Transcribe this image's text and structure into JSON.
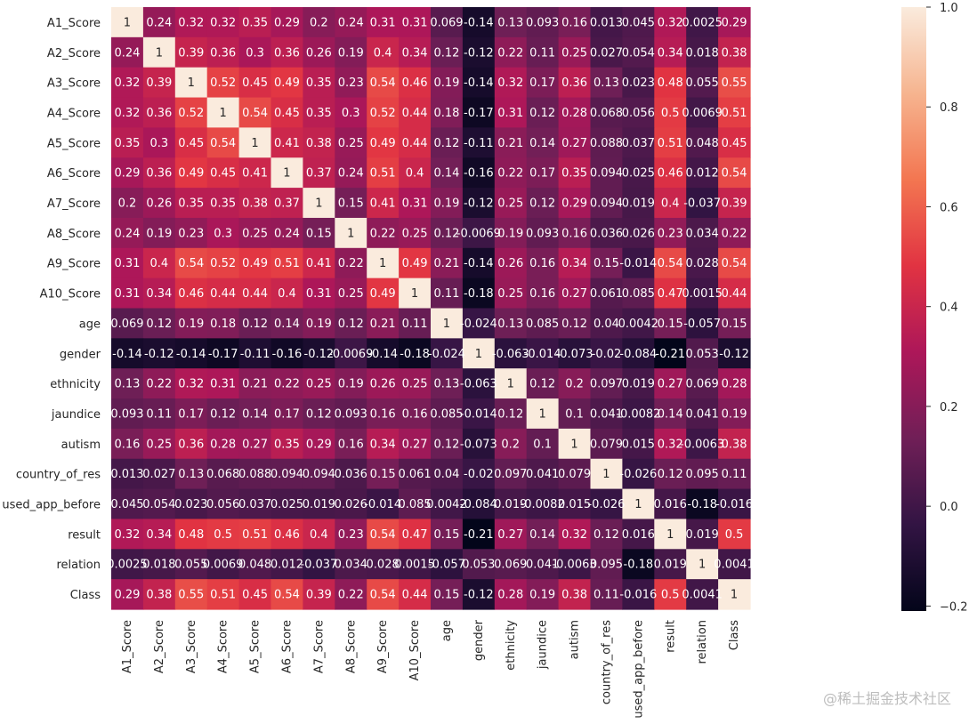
{
  "chart_data": {
    "type": "heatmap",
    "title": "",
    "labels": [
      "A1_Score",
      "A2_Score",
      "A3_Score",
      "A4_Score",
      "A5_Score",
      "A6_Score",
      "A7_Score",
      "A8_Score",
      "A9_Score",
      "A10_Score",
      "age",
      "gender",
      "ethnicity",
      "jaundice",
      "autism",
      "country_of_res",
      "used_app_before",
      "result",
      "relation",
      "Class"
    ],
    "values": [
      [
        "1",
        "0.24",
        "0.32",
        "0.32",
        "0.35",
        "0.29",
        "0.2",
        "0.24",
        "0.31",
        "0.31",
        "0.069",
        "-0.14",
        "0.13",
        "0.093",
        "0.16",
        "0.013",
        "0.045",
        "0.32",
        "0.0025",
        "0.29"
      ],
      [
        "0.24",
        "1",
        "0.39",
        "0.36",
        "0.3",
        "0.36",
        "0.26",
        "0.19",
        "0.4",
        "0.34",
        "0.12",
        "-0.12",
        "0.22",
        "0.11",
        "0.25",
        "0.027",
        "0.054",
        "0.34",
        "0.018",
        "0.38"
      ],
      [
        "0.32",
        "0.39",
        "1",
        "0.52",
        "0.45",
        "0.49",
        "0.35",
        "0.23",
        "0.54",
        "0.46",
        "0.19",
        "-0.14",
        "0.32",
        "0.17",
        "0.36",
        "0.13",
        "0.023",
        "0.48",
        "0.055",
        "0.55"
      ],
      [
        "0.32",
        "0.36",
        "0.52",
        "1",
        "0.54",
        "0.45",
        "0.35",
        "0.3",
        "0.52",
        "0.44",
        "0.18",
        "-0.17",
        "0.31",
        "0.12",
        "0.28",
        "0.068",
        "0.056",
        "0.5",
        "0.0069",
        "0.51"
      ],
      [
        "0.35",
        "0.3",
        "0.45",
        "0.54",
        "1",
        "0.41",
        "0.38",
        "0.25",
        "0.49",
        "0.44",
        "0.12",
        "-0.11",
        "0.21",
        "0.14",
        "0.27",
        "0.088",
        "0.037",
        "0.51",
        "0.048",
        "0.45"
      ],
      [
        "0.29",
        "0.36",
        "0.49",
        "0.45",
        "0.41",
        "1",
        "0.37",
        "0.24",
        "0.51",
        "0.4",
        "0.14",
        "-0.16",
        "0.22",
        "0.17",
        "0.35",
        "0.094",
        "0.025",
        "0.46",
        "0.012",
        "0.54"
      ],
      [
        "0.2",
        "0.26",
        "0.35",
        "0.35",
        "0.38",
        "0.37",
        "1",
        "0.15",
        "0.41",
        "0.31",
        "0.19",
        "-0.12",
        "0.25",
        "0.12",
        "0.29",
        "0.094",
        "0.019",
        "0.4",
        "-0.037",
        "0.39"
      ],
      [
        "0.24",
        "0.19",
        "0.23",
        "0.3",
        "0.25",
        "0.24",
        "0.15",
        "1",
        "0.22",
        "0.25",
        "0.12",
        "-0.0069",
        "0.19",
        "0.093",
        "0.16",
        "0.036",
        "0.026",
        "0.23",
        "0.034",
        "0.22"
      ],
      [
        "0.31",
        "0.4",
        "0.54",
        "0.52",
        "0.49",
        "0.51",
        "0.41",
        "0.22",
        "1",
        "0.49",
        "0.21",
        "-0.14",
        "0.26",
        "0.16",
        "0.34",
        "0.15",
        "-0.014",
        "0.54",
        "0.028",
        "0.54"
      ],
      [
        "0.31",
        "0.34",
        "0.46",
        "0.44",
        "0.44",
        "0.4",
        "0.31",
        "0.25",
        "0.49",
        "1",
        "0.11",
        "-0.18",
        "0.25",
        "0.16",
        "0.27",
        "0.061",
        "0.085",
        "0.47",
        "0.0015",
        "0.44"
      ],
      [
        "0.069",
        "0.12",
        "0.19",
        "0.18",
        "0.12",
        "0.14",
        "0.19",
        "0.12",
        "0.21",
        "0.11",
        "1",
        "-0.024",
        "0.13",
        "0.085",
        "0.12",
        "0.04",
        "0.0042",
        "0.15",
        "-0.057",
        "0.15"
      ],
      [
        "-0.14",
        "-0.12",
        "-0.14",
        "-0.17",
        "-0.11",
        "-0.16",
        "-0.12",
        "-0.0069",
        "-0.14",
        "-0.18",
        "-0.024",
        "1",
        "-0.063",
        "-0.014",
        "-0.073",
        "-0.02",
        "-0.084",
        "-0.21",
        "0.053",
        "-0.12"
      ],
      [
        "0.13",
        "0.22",
        "0.32",
        "0.31",
        "0.21",
        "0.22",
        "0.25",
        "0.19",
        "0.26",
        "0.25",
        "0.13",
        "-0.063",
        "1",
        "0.12",
        "0.2",
        "0.097",
        "0.019",
        "0.27",
        "0.069",
        "0.28"
      ],
      [
        "0.093",
        "0.11",
        "0.17",
        "0.12",
        "0.14",
        "0.17",
        "0.12",
        "0.093",
        "0.16",
        "0.16",
        "0.085",
        "-0.014",
        "0.12",
        "1",
        "0.1",
        "0.041",
        "-0.0082",
        "0.14",
        "0.041",
        "0.19"
      ],
      [
        "0.16",
        "0.25",
        "0.36",
        "0.28",
        "0.27",
        "0.35",
        "0.29",
        "0.16",
        "0.34",
        "0.27",
        "0.12",
        "-0.073",
        "0.2",
        "0.1",
        "1",
        "0.079",
        "0.015",
        "0.32",
        "-0.0063",
        "0.38"
      ],
      [
        "0.013",
        "0.027",
        "0.13",
        "0.068",
        "0.088",
        "0.094",
        "0.094",
        "0.036",
        "0.15",
        "0.061",
        "0.04",
        "-0.02",
        "0.097",
        "0.041",
        "0.079",
        "1",
        "-0.026",
        "0.12",
        "0.095",
        "0.11"
      ],
      [
        "0.045",
        "0.054",
        "0.023",
        "0.056",
        "0.037",
        "0.025",
        "0.019",
        "0.026",
        "-0.014",
        "0.085",
        "0.0042",
        "-0.084",
        "0.019",
        "-0.0082",
        "0.015",
        "-0.026",
        "1",
        "0.016",
        "-0.18",
        "-0.016"
      ],
      [
        "0.32",
        "0.34",
        "0.48",
        "0.5",
        "0.51",
        "0.46",
        "0.4",
        "0.23",
        "0.54",
        "0.47",
        "0.15",
        "-0.21",
        "0.27",
        "0.14",
        "0.32",
        "0.12",
        "0.016",
        "1",
        "0.019",
        "0.5"
      ],
      [
        "0.0025",
        "0.018",
        "0.055",
        "0.0069",
        "0.048",
        "0.012",
        "-0.037",
        "0.034",
        "0.028",
        "0.0015",
        "-0.057",
        "0.053",
        "0.069",
        "0.041",
        "-0.0063",
        "0.095",
        "-0.18",
        "0.019",
        "1",
        "0.0041"
      ],
      [
        "0.29",
        "0.38",
        "0.55",
        "0.51",
        "0.45",
        "0.54",
        "0.39",
        "0.22",
        "0.54",
        "0.44",
        "0.15",
        "-0.12",
        "0.28",
        "0.19",
        "0.38",
        "0.11",
        "-0.016",
        "0.5",
        "0.0041",
        "1"
      ]
    ],
    "colorbar": {
      "range": [
        -0.21,
        1.0
      ],
      "ticks": [
        1.0,
        0.8,
        0.6,
        0.4,
        0.2,
        0.0,
        -0.2
      ],
      "tick_labels": [
        "1.0",
        "0.8",
        "0.6",
        "0.4",
        "0.2",
        "0.0",
        "−0.2"
      ],
      "colormap": "rocket",
      "stops": [
        "#03051a",
        "#321443",
        "#701f57",
        "#ad1759",
        "#e13342",
        "#f37651",
        "#f6b48f",
        "#faebdd"
      ]
    },
    "xlabel": "",
    "ylabel": ""
  },
  "watermark": "@稀土掘金技术社区"
}
